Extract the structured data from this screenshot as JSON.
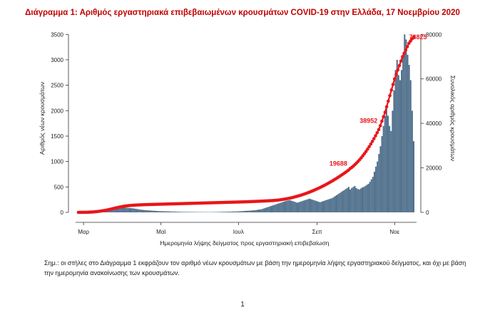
{
  "page": {
    "title": "Διάγραμμα 1: Αριθμός εργαστηριακά επιβεβαιωμένων κρουσμάτων COVID-19 στην Ελλάδα, 17 Νοεμβρίου 2020",
    "note": "Σημ.: οι στήλες στο Διάγραμμα 1 εκφράζουν τον αριθμό νέων κρουσμάτων με βάση την ημερομηνία λήψης εργαστηριακού δείγματος, και όχι με βάση την ημερομηνία ανακοίνωσης των κρουσμάτων.",
    "page_number": "1"
  },
  "colors": {
    "bars": "#4f6f8c",
    "cumulative_line": "#e8161b",
    "labels": "#e8161b",
    "axis": "#333333"
  },
  "chart_data": {
    "type": "bar",
    "title": "",
    "xlabel": "Ημερομηνία λήψης δείγματος προς εργαστηριακή επιβεβαίωση",
    "ylabel": "Αριθμός νέων κρουσμάτων",
    "y2label": "Συνολικός αριθμός κρουσμάτων",
    "ylim": [
      0,
      3700
    ],
    "y2lim": [
      0,
      84571
    ],
    "yticks": [
      0,
      500,
      1000,
      1500,
      2000,
      2500,
      3000,
      3500
    ],
    "y2ticks": [
      0,
      20000,
      40000,
      60000,
      80000
    ],
    "x_start": "2020-02-26",
    "x_end": "2020-11-16",
    "xticks": [
      {
        "date": "2020-03-01",
        "label": "Μαρ"
      },
      {
        "date": "2020-05-01",
        "label": "Μαϊ"
      },
      {
        "date": "2020-07-01",
        "label": "Ιουλ"
      },
      {
        "date": "2020-09-01",
        "label": "Σεπ"
      },
      {
        "date": "2020-11-01",
        "label": "Νοε"
      }
    ],
    "grid": false,
    "series": [
      {
        "kind": "bar",
        "axis": "left",
        "values": [
          1,
          1,
          2,
          3,
          5,
          8,
          10,
          12,
          15,
          20,
          25,
          30,
          35,
          40,
          45,
          50,
          55,
          60,
          65,
          70,
          75,
          80,
          82,
          85,
          88,
          90,
          92,
          95,
          98,
          100,
          95,
          92,
          90,
          88,
          85,
          82,
          80,
          75,
          70,
          65,
          60,
          55,
          50,
          48,
          45,
          42,
          40,
          38,
          36,
          34,
          32,
          30,
          28,
          26,
          25,
          24,
          23,
          22,
          21,
          20,
          19,
          18,
          17,
          16,
          15,
          14,
          13,
          12,
          11,
          10,
          10,
          10,
          9,
          9,
          9,
          8,
          8,
          8,
          7,
          7,
          7,
          7,
          6,
          6,
          6,
          6,
          6,
          6,
          6,
          7,
          7,
          8,
          8,
          9,
          10,
          11,
          12,
          12,
          13,
          14,
          14,
          15,
          16,
          17,
          18,
          19,
          20,
          22,
          24,
          26,
          28,
          30,
          32,
          34,
          36,
          38,
          40,
          44,
          48,
          52,
          56,
          60,
          70,
          80,
          90,
          100,
          110,
          120,
          130,
          140,
          150,
          160,
          170,
          180,
          190,
          200,
          210,
          220,
          230,
          235,
          240,
          230,
          220,
          210,
          200,
          190,
          200,
          210,
          220,
          230,
          240,
          250,
          260,
          270,
          260,
          250,
          240,
          230,
          220,
          210,
          200,
          210,
          220,
          230,
          240,
          250,
          260,
          270,
          280,
          300,
          320,
          340,
          360,
          380,
          400,
          420,
          440,
          460,
          480,
          500,
          450,
          480,
          500,
          520,
          480,
          460,
          450,
          470,
          490,
          500,
          520,
          540,
          560,
          600,
          650,
          700,
          800,
          900,
          1000,
          1150,
          1300,
          1500,
          1700,
          1900,
          2100,
          1900,
          1700,
          1600,
          2000,
          2400,
          2800,
          3000,
          2700,
          2600,
          2800,
          3100,
          3500,
          3400,
          3100,
          2900,
          2600,
          2000,
          1400
        ],
        "annotations": []
      },
      {
        "kind": "line",
        "axis": "right",
        "values": [
          2,
          5,
          9,
          15,
          25,
          40,
          60,
          90,
          130,
          180,
          240,
          310,
          390,
          480,
          580,
          690,
          810,
          940,
          1080,
          1230,
          1390,
          1560,
          1730,
          1900,
          2070,
          2230,
          2380,
          2520,
          2650,
          2770,
          2880,
          2970,
          3050,
          3120,
          3180,
          3230,
          3270,
          3310,
          3350,
          3380,
          3410,
          3440,
          3470,
          3490,
          3510,
          3530,
          3550,
          3570,
          3590,
          3610,
          3630,
          3650,
          3670,
          3690,
          3710,
          3730,
          3750,
          3770,
          3790,
          3810,
          3830,
          3850,
          3870,
          3890,
          3910,
          3930,
          3950,
          3970,
          3990,
          4010,
          4030,
          4050,
          4070,
          4090,
          4110,
          4130,
          4150,
          4170,
          4190,
          4210,
          4230,
          4250,
          4270,
          4290,
          4310,
          4330,
          4350,
          4370,
          4390,
          4410,
          4430,
          4450,
          4470,
          4490,
          4510,
          4530,
          4550,
          4570,
          4590,
          4610,
          4630,
          4650,
          4670,
          4690,
          4710,
          4730,
          4760,
          4790,
          4820,
          4850,
          4880,
          4910,
          4940,
          4970,
          5000,
          5030,
          5060,
          5090,
          5130,
          5170,
          5210,
          5250,
          5300,
          5350,
          5410,
          5480,
          5560,
          5650,
          5750,
          5860,
          5980,
          6110,
          6250,
          6400,
          6560,
          6730,
          6910,
          7100,
          7300,
          7510,
          7730,
          7960,
          8200,
          8450,
          8710,
          8980,
          9260,
          9550,
          9850,
          10160,
          10480,
          10810,
          11150,
          11500,
          11860,
          12230,
          12610,
          13000,
          13400,
          13810,
          14230,
          14660,
          15100,
          15550,
          16010,
          16480,
          16960,
          17450,
          17950,
          18460,
          18980,
          19688,
          20200,
          20800,
          21450,
          22150,
          22900,
          23700,
          24550,
          25450,
          26400,
          27400,
          28450,
          29550,
          30700,
          31900,
          33150,
          34450,
          35800,
          37200,
          38952,
          41000,
          43000,
          45000,
          47500,
          50000,
          52500,
          55000,
          57500,
          60000,
          62000,
          64000,
          66000,
          68000,
          70000,
          71500,
          73000,
          74500,
          76000,
          77000,
          78000,
          78825
        ],
        "annotations": [
          {
            "label": "19688"
          },
          {
            "label": "38952"
          },
          {
            "label": "78825"
          }
        ]
      }
    ]
  }
}
